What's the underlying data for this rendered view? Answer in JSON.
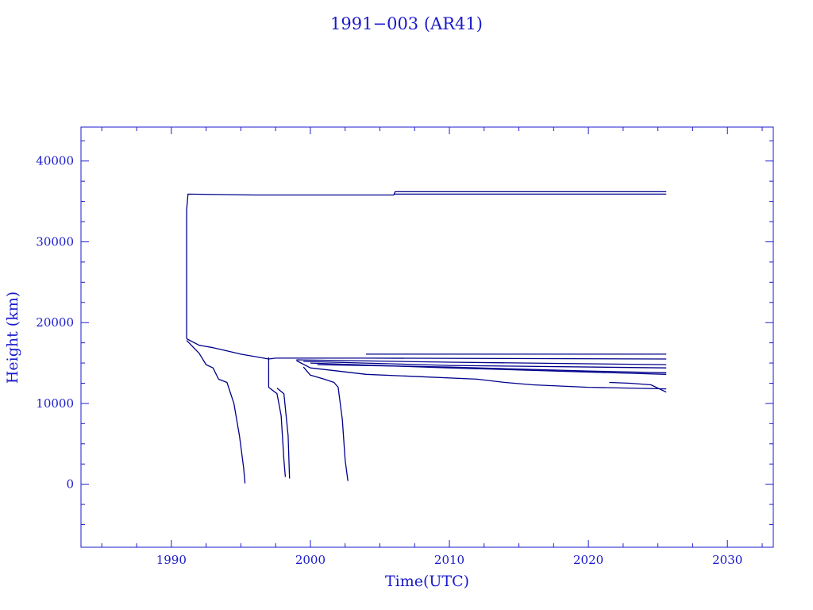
{
  "chart_data": {
    "type": "line",
    "title": "1991−003 (AR41)",
    "xlabel": "Time(UTC)",
    "ylabel": "Height (km)",
    "xlim": [
      1983.5,
      2033.3
    ],
    "ylim": [
      -7800,
      44200
    ],
    "x_ticks": [
      1990,
      2000,
      2010,
      2020,
      2030
    ],
    "x_tick_labels": [
      "1990",
      "2000",
      "2010",
      "2020",
      "2030"
    ],
    "y_ticks": [
      0,
      10000,
      20000,
      30000,
      40000
    ],
    "y_tick_labels": [
      "0",
      "10000",
      "20000",
      "30000",
      "40000"
    ],
    "grid": false,
    "legend": "none",
    "color": "#1a1acc",
    "line_color": "#00008b",
    "series": [
      {
        "x": [
          1991.1,
          1991.1,
          1991.2,
          1996.0,
          2006.0,
          2006.1,
          2025.6
        ],
        "y": [
          18000,
          34000,
          35900,
          35800,
          35800,
          36200,
          36200
        ]
      },
      {
        "x": [
          2006.0,
          2025.6
        ],
        "y": [
          35900,
          35900
        ]
      },
      {
        "x": [
          1991.1,
          1992.0,
          1993.0,
          1994.0,
          1995.0,
          1996.0,
          1997.0,
          1997.5
        ],
        "y": [
          18000,
          17200,
          16900,
          16500,
          16100,
          15800,
          15500,
          15600
        ]
      },
      {
        "x": [
          1997.5,
          2004.0,
          2025.6
        ],
        "y": [
          15600,
          15600,
          15500
        ]
      },
      {
        "x": [
          2004.0,
          2025.6
        ],
        "y": [
          16100,
          16100
        ]
      },
      {
        "x": [
          1999.0,
          2010.0,
          2025.6
        ],
        "y": [
          15400,
          15100,
          14800
        ]
      },
      {
        "x": [
          1999.5,
          2010.0,
          2025.6
        ],
        "y": [
          15200,
          14700,
          14400
        ]
      },
      {
        "x": [
          2000.0,
          2010.0,
          2025.6
        ],
        "y": [
          15000,
          14400,
          13600
        ]
      },
      {
        "x": [
          2000.5,
          2010.0,
          2020.0,
          2025.6
        ],
        "y": [
          14800,
          14500,
          14000,
          13800
        ]
      },
      {
        "x": [
          1999.0,
          2000.0,
          2002.0,
          2004.0,
          2008.0,
          2012.0,
          2014.0,
          2016.0,
          2020.0,
          2025.6
        ],
        "y": [
          15300,
          14400,
          14000,
          13600,
          13300,
          13000,
          12600,
          12300,
          12000,
          11800
        ]
      },
      {
        "x": [
          2021.5,
          2023.0,
          2024.5,
          2025.6
        ],
        "y": [
          12600,
          12500,
          12300,
          11400
        ]
      },
      {
        "x": [
          1991.1,
          1992.0,
          1992.5,
          1993.0,
          1993.4,
          1994.0,
          1994.5,
          1994.9,
          1995.2,
          1995.3
        ],
        "y": [
          17800,
          16200,
          14800,
          14400,
          13000,
          12600,
          10000,
          6000,
          2000,
          100
        ]
      },
      {
        "x": [
          1997.0,
          1997.0,
          1997.6,
          1997.9,
          1998.1,
          1998.2
        ],
        "y": [
          15700,
          12000,
          11200,
          8500,
          3000,
          900
        ]
      },
      {
        "x": [
          1997.6,
          1998.1,
          1998.4,
          1998.5
        ],
        "y": [
          11900,
          11200,
          6000,
          700
        ]
      },
      {
        "x": [
          1999.5,
          2000.0,
          2001.0,
          2001.7,
          2002.0,
          2002.3,
          2002.5,
          2002.7
        ],
        "y": [
          14500,
          13500,
          13000,
          12600,
          12000,
          8000,
          3000,
          400
        ]
      }
    ]
  }
}
